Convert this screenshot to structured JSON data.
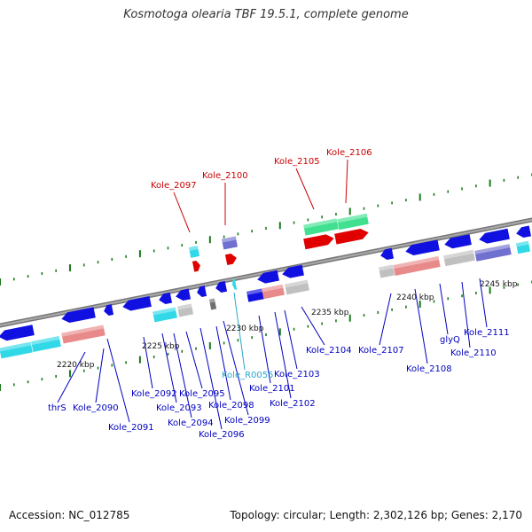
{
  "title": "Kosmotoga olearia TBF 19.5.1, complete genome",
  "footer": {
    "accession": "Accession: NC_012785",
    "summary": "Topology: circular; Length: 2,302,126 bp; Genes: 2,170"
  },
  "colors": {
    "blue_label": "#0000c0",
    "red_label": "#cc0000",
    "cyan_label": "#2aa7cc",
    "backbone": "#888888",
    "ticks": "#1a7a1a",
    "gene_blue": "#1010e0",
    "gene_red": "#e00000",
    "gene_cyan": "#30d8e8",
    "gene_pink": "#e88a8a",
    "gene_gray": "#c0c0c0",
    "gene_green": "#40e090",
    "gene_purple": "#7070d0",
    "gene_dark": "#707070"
  },
  "scale_labels": [
    "2220 kbp",
    "2225 kbp",
    "2230 kbp",
    "2235 kbp",
    "2240 kbp",
    "2245 kbp"
  ],
  "gene_labels_blue": [
    "thrS",
    "Kole_2090",
    "Kole_2091",
    "Kole_2092",
    "Kole_2093",
    "Kole_2094",
    "Kole_2095",
    "Kole_2096",
    "Kole_2098",
    "Kole_2099",
    "Kole_2101",
    "Kole_2102",
    "Kole_2103",
    "Kole_2104",
    "Kole_2107",
    "Kole_2108",
    "glyQ",
    "Kole_2110",
    "Kole_2111"
  ],
  "gene_labels_cyan": [
    "Kole_R0055"
  ],
  "gene_labels_red": [
    "Kole_2097",
    "Kole_2100",
    "Kole_2105",
    "Kole_2106"
  ]
}
